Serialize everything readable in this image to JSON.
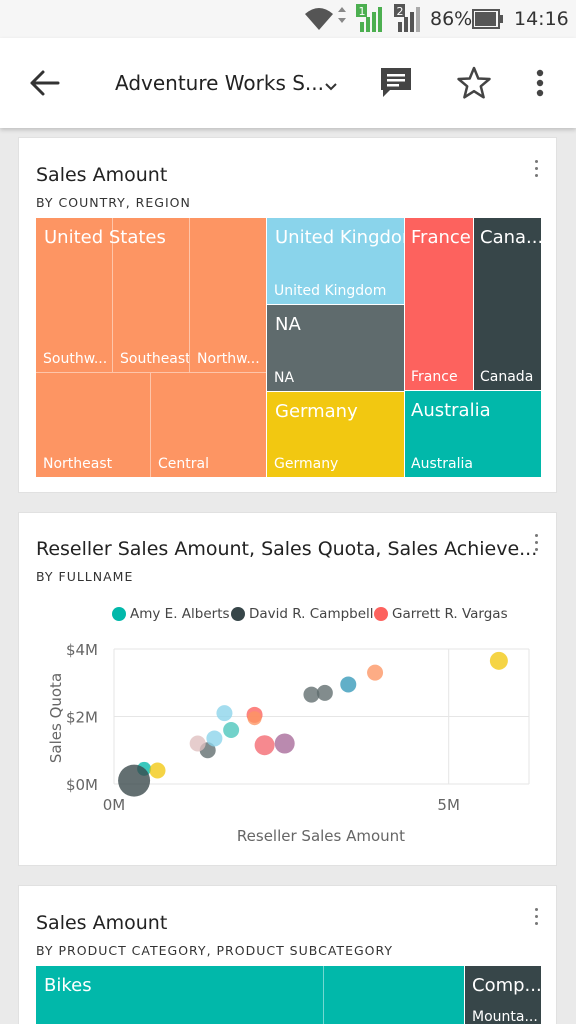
{
  "status_bar": {
    "battery_percent": "86%",
    "time": "14:16",
    "sim1": "1",
    "sim2": "2",
    "icons": [
      "wifi-icon",
      "signal-icon",
      "battery-icon"
    ]
  },
  "app_bar": {
    "title": "Adventure Works S...",
    "icons": [
      "back-arrow-icon",
      "chevron-down-icon",
      "comment-icon",
      "star-icon",
      "more-vert-icon"
    ]
  },
  "cards": [
    {
      "title": "Sales Amount",
      "subtitle": "BY COUNTRY, REGION",
      "treemap": {
        "united_states": {
          "label": "United States",
          "regions": [
            "Southw...",
            "Southeast",
            "Northw...",
            "Northeast",
            "Central"
          ],
          "color": "#fd9563"
        },
        "united_kingdom": {
          "label": "United Kingdom",
          "sub": "United Kingdom",
          "color": "#8ad4eb"
        },
        "na": {
          "label": "NA",
          "sub": "NA",
          "color": "#5f6b6d"
        },
        "germany": {
          "label": "Germany",
          "sub": "Germany",
          "color": "#f2c811"
        },
        "france": {
          "label": "France",
          "sub": "France",
          "color": "#fd625e"
        },
        "canada": {
          "label": "Cana...",
          "sub": "Canada",
          "color": "#374649"
        },
        "australia": {
          "label": "Australia",
          "sub": "Australia",
          "color": "#01b8aa"
        }
      }
    },
    {
      "title": "Reseller Sales Amount, Sales Quota, Sales Achieve...",
      "subtitle": "BY FULLNAME",
      "legend": [
        {
          "name": "Amy E. Alberts",
          "color": "#01b8aa"
        },
        {
          "name": "David R. Campbell",
          "color": "#374649"
        },
        {
          "name": "Garrett R. Vargas",
          "color": "#fd625e"
        }
      ]
    },
    {
      "title": "Sales Amount",
      "subtitle": "BY PRODUCT CATEGORY, PRODUCT SUBCATEGORY",
      "treemap": {
        "bikes": {
          "label": "Bikes",
          "color": "#01b8aa"
        },
        "components": {
          "label": "Comp...",
          "sub": "Mounta...",
          "color": "#374649"
        }
      }
    }
  ],
  "chart_data": {
    "type": "scatter",
    "title": "Reseller Sales Amount, Sales Quota, Sales Achieve...",
    "subtitle": "BY FULLNAME",
    "xlabel": "Reseller Sales Amount",
    "ylabel": "Sales Quota",
    "x_ticks": [
      "0M",
      "5M"
    ],
    "y_ticks": [
      "$0M",
      "$2M",
      "$4M"
    ],
    "xlim": [
      0,
      6.2
    ],
    "ylim": [
      0,
      4.0
    ],
    "grid": true,
    "legend_position": "top",
    "series": [
      {
        "name": "Amy E. Alberts",
        "color": "#01b8aa",
        "points": [
          {
            "x": 0.45,
            "y": 0.45,
            "r": 7
          }
        ]
      },
      {
        "name": "David R. Campbell",
        "color": "#374649",
        "points": [
          {
            "x": 0.3,
            "y": 0.1,
            "r": 16
          }
        ]
      },
      {
        "name": "Garrett R. Vargas",
        "color": "#fd625e",
        "points": [
          {
            "x": 2.1,
            "y": 2.05,
            "r": 8
          }
        ]
      },
      {
        "name": "",
        "color": "#f2c811",
        "points": [
          {
            "x": 0.65,
            "y": 0.4,
            "r": 8
          },
          {
            "x": 5.75,
            "y": 3.65,
            "r": 9
          }
        ]
      },
      {
        "name": "",
        "color": "#fd9563",
        "points": [
          {
            "x": 2.1,
            "y": 1.95,
            "r": 7
          },
          {
            "x": 3.9,
            "y": 3.3,
            "r": 8
          }
        ]
      },
      {
        "name": "",
        "color": "#5f6b6d",
        "points": [
          {
            "x": 1.4,
            "y": 1.0,
            "r": 8
          },
          {
            "x": 2.95,
            "y": 2.65,
            "r": 8
          },
          {
            "x": 3.15,
            "y": 2.7,
            "r": 8
          }
        ]
      },
      {
        "name": "",
        "color": "#3599b8",
        "points": [
          {
            "x": 3.5,
            "y": 2.95,
            "r": 8
          }
        ]
      },
      {
        "name": "",
        "color": "#8ad4eb",
        "points": [
          {
            "x": 1.65,
            "y": 2.1,
            "r": 8
          },
          {
            "x": 1.5,
            "y": 1.35,
            "r": 8
          }
        ]
      },
      {
        "name": "",
        "color": "#dfbfbf",
        "points": [
          {
            "x": 1.25,
            "y": 1.2,
            "r": 8
          }
        ]
      },
      {
        "name": "",
        "color": "#4ac5bb",
        "points": [
          {
            "x": 1.75,
            "y": 1.6,
            "r": 8
          }
        ]
      },
      {
        "name": "",
        "color": "#f4686f",
        "points": [
          {
            "x": 2.25,
            "y": 1.15,
            "r": 10
          }
        ]
      },
      {
        "name": "",
        "color": "#a66999",
        "points": [
          {
            "x": 2.55,
            "y": 1.2,
            "r": 10
          }
        ]
      }
    ]
  }
}
